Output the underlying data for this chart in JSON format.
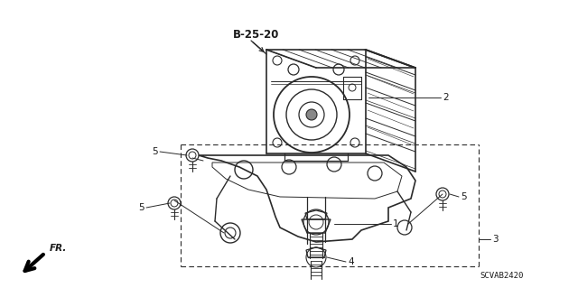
{
  "background_color": "#ffffff",
  "fig_width": 6.4,
  "fig_height": 3.19,
  "dpi": 100,
  "line_color": "#2a2a2a",
  "text_color": "#1a1a1a",
  "label_b2520": "B-25-20",
  "label_2": "2",
  "label_1": "1",
  "label_4": "4",
  "label_3": "3",
  "label_5": "5",
  "label_fr": "FR.",
  "label_scvab": "SCVAB2420",
  "font_size_label": 7.5,
  "font_size_b25": 8.5,
  "font_size_scvab": 6.5
}
